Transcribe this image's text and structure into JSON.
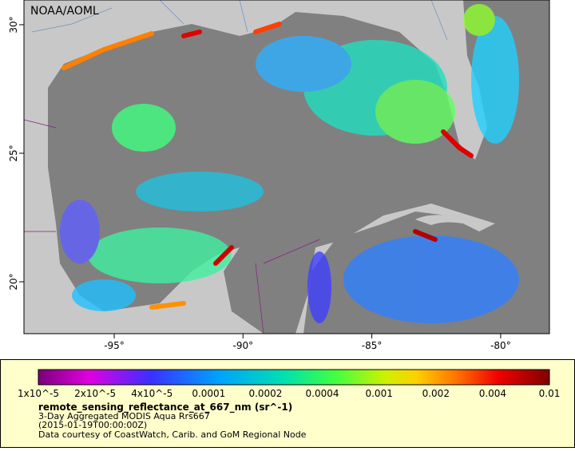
{
  "map": {
    "watermark": "NOAA/AOML",
    "lon_labels": [
      "-95°",
      "-90°",
      "-85°",
      "-80°"
    ],
    "lat_labels": [
      "30°",
      "25°",
      "20°"
    ]
  },
  "legend": {
    "colorbar_labels": [
      "1x10^-5",
      "2x10^-5",
      "4x10^-5",
      "0.0001",
      "0.0002",
      "0.0004",
      "0.001",
      "0.002",
      "0.004",
      "0.01"
    ],
    "variable": "remote_sensing_reflectance_at_667_nm (sr^-1)",
    "dataset": "3-Day Aggregated MODIS Aqua Rrs667",
    "time": "(2015-01-19T00:00:00Z)",
    "credit": "Data courtesy of CoastWatch, Carib. and GoM Regional Node"
  }
}
